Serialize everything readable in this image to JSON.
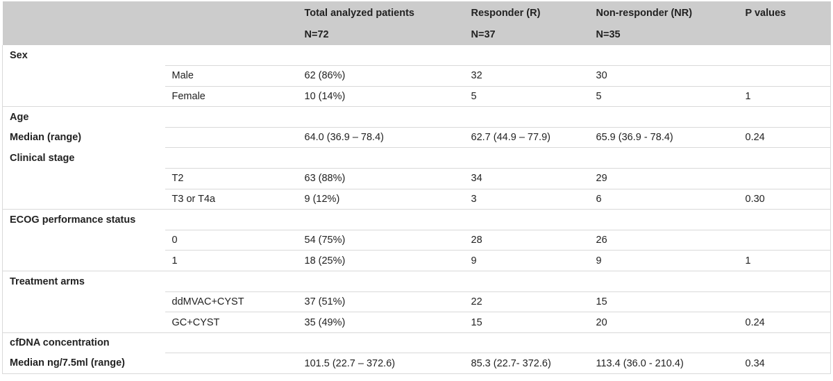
{
  "header": {
    "row1": [
      "",
      "",
      "Total analyzed patients",
      "Responder (R)",
      "Non-responder (NR)",
      "P values"
    ],
    "row2": [
      "",
      "",
      "N=72",
      "N=37",
      "N=35",
      ""
    ]
  },
  "sections": {
    "sex": {
      "title": "Sex",
      "rows": [
        [
          "Male",
          "62 (86%)",
          "32",
          "30",
          ""
        ],
        [
          "Female",
          "10 (14%)",
          "5",
          "5",
          "1"
        ]
      ]
    },
    "age": {
      "title": "Age",
      "subtitle": "Median (range)",
      "rows": [
        [
          "",
          "64.0 (36.9 – 78.4)",
          "62.7 (44.9 – 77.9)",
          "65.9 (36.9 - 78.4)",
          "0.24"
        ]
      ]
    },
    "stage": {
      "title": "Clinical stage",
      "rows": [
        [
          "T2",
          "63 (88%)",
          "34",
          "29",
          ""
        ],
        [
          "T3 or T4a",
          "9 (12%)",
          "3",
          "6",
          "0.30"
        ]
      ]
    },
    "ecog": {
      "title": "ECOG performance status",
      "rows": [
        [
          "0",
          "54 (75%)",
          "28",
          "26",
          ""
        ],
        [
          "1",
          "18 (25%)",
          "9",
          "9",
          "1"
        ]
      ]
    },
    "arms": {
      "title": "Treatment arms",
      "rows": [
        [
          "ddMVAC+CYST",
          "37 (51%)",
          "22",
          "15",
          ""
        ],
        [
          "GC+CYST",
          "35 (49%)",
          "15",
          "20",
          "0.24"
        ]
      ]
    },
    "cfdna": {
      "title": "cfDNA concentration",
      "subtitle": "Median ng/7.5ml (range)",
      "rows": [
        [
          "",
          "101.5 (22.7 – 372.6)",
          "85.3 (22.7- 372.6)",
          "113.4 (36.0 - 210.4)",
          "0.34"
        ]
      ]
    }
  }
}
